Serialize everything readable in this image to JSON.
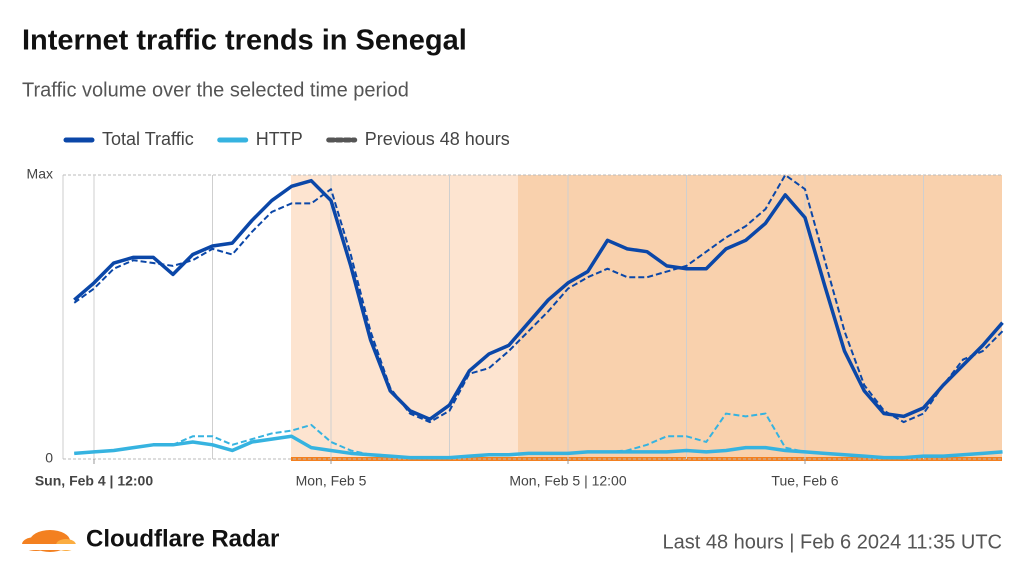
{
  "chart_data": {
    "type": "line",
    "title": "Internet traffic trends in Senegal",
    "subtitle": "Traffic volume over the selected time period",
    "footer_brand": "Cloudflare Radar",
    "footer_info": "Last 48 hours | Feb 6 2024 11:35 UTC",
    "categories": [
      null,
      "Sun, Feb 4 | 12:00",
      null,
      null,
      null,
      null,
      null,
      null,
      null,
      null,
      null,
      null,
      null,
      "Mon, Feb 5",
      null,
      null,
      null,
      null,
      null,
      null,
      null,
      null,
      null,
      null,
      null,
      "Mon, Feb 5 | 12:00",
      null,
      null,
      null,
      null,
      null,
      null,
      null,
      null,
      null,
      null,
      null,
      "Tue, Feb 6",
      null,
      null,
      null,
      null,
      null,
      null,
      null,
      null,
      null,
      null
    ],
    "ylim": [
      0,
      100
    ],
    "yticks": [
      0,
      {
        "value": 100,
        "label": "Max"
      }
    ],
    "grid": true,
    "legend": "top-left",
    "series": [
      {
        "name": "Total Traffic",
        "color": "#0b47a8",
        "dashed": false,
        "values": [
          56,
          62,
          69,
          71,
          71,
          65,
          72,
          75,
          76,
          84,
          91,
          96,
          98,
          91,
          68,
          42,
          24,
          17,
          14,
          19,
          31,
          37,
          40,
          48,
          56,
          62,
          66,
          77,
          74,
          73,
          68,
          67,
          67,
          74,
          77,
          83,
          93,
          85,
          61,
          38,
          24,
          16,
          15,
          18,
          26,
          33,
          40,
          48
        ]
      },
      {
        "name": "HTTP",
        "color": "#36b3e0",
        "dashed": false,
        "values": [
          2,
          2.5,
          3,
          4,
          5,
          5,
          6,
          5,
          3,
          6,
          7,
          8,
          4,
          3,
          2,
          1.5,
          1,
          0.5,
          0.5,
          0.5,
          1,
          1.5,
          1.5,
          2,
          2,
          2,
          2.5,
          2.5,
          2.5,
          2.5,
          2.5,
          3,
          2.5,
          3,
          4,
          4,
          3,
          2.5,
          2,
          1.5,
          1,
          0.5,
          0.5,
          1,
          1,
          1.5,
          2,
          2.5
        ]
      },
      {
        "name": "Previous 48 hours",
        "color": "#0b47a8",
        "legend_color": "#555555",
        "dashed": true,
        "values": [
          55,
          60,
          67,
          70,
          69,
          68,
          70,
          74,
          72,
          80,
          87,
          90,
          90,
          95,
          72,
          45,
          25,
          16,
          13,
          17,
          30,
          32,
          38,
          45,
          52,
          60,
          64,
          67,
          64,
          64,
          66,
          68,
          73,
          78,
          82,
          88,
          100,
          95,
          70,
          45,
          26,
          17,
          13,
          16,
          26,
          35,
          38,
          45
        ]
      },
      {
        "color": "#36b3e0",
        "dashed": true,
        "values": [
          2,
          2.5,
          3,
          4,
          5,
          5,
          8,
          8,
          5,
          7,
          9,
          10,
          12,
          6,
          3,
          1.5,
          1,
          0.5,
          0.5,
          0.5,
          1,
          1.5,
          1.5,
          2,
          2,
          2,
          2.5,
          2.5,
          3,
          5,
          8,
          8,
          6,
          16,
          15,
          16,
          4,
          2.5,
          2,
          1.5,
          1,
          0.5,
          0.5,
          1,
          1,
          1.5,
          2,
          2.5
        ]
      }
    ]
  }
}
